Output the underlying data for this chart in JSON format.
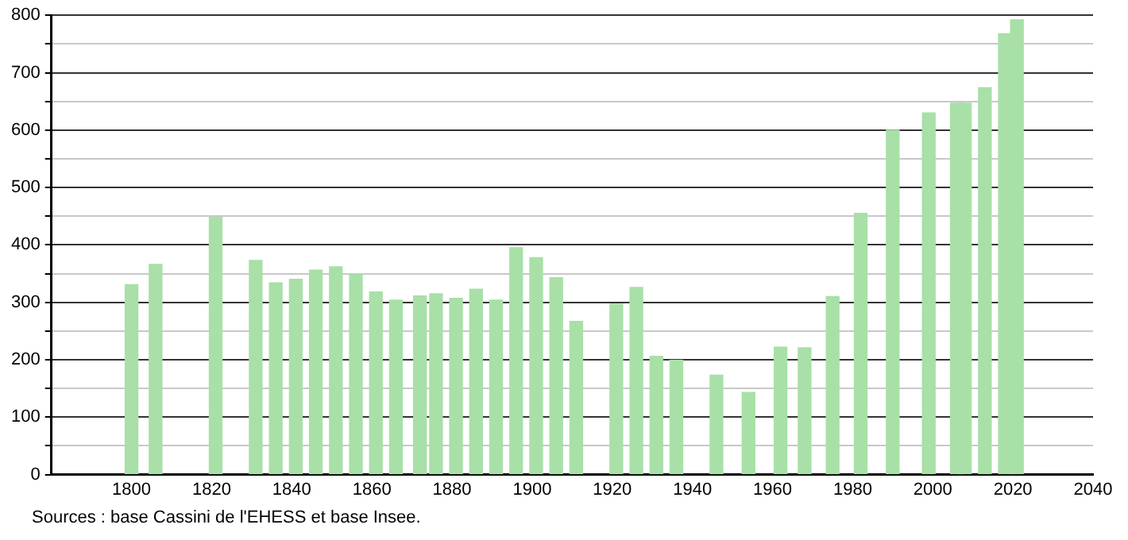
{
  "chart_data": {
    "type": "bar",
    "color": "#a8e0a8",
    "x": [
      1800,
      1806,
      1821,
      1831,
      1836,
      1841,
      1846,
      1851,
      1856,
      1861,
      1866,
      1872,
      1876,
      1881,
      1886,
      1891,
      1896,
      1901,
      1906,
      1911,
      1921,
      1926,
      1931,
      1936,
      1946,
      1954,
      1962,
      1968,
      1975,
      1982,
      1990,
      1999,
      2006,
      2008,
      2013,
      2018,
      2021
    ],
    "values": [
      331,
      366,
      448,
      373,
      334,
      340,
      356,
      362,
      349,
      318,
      304,
      311,
      315,
      307,
      323,
      304,
      395,
      378,
      343,
      267,
      297,
      326,
      206,
      199,
      173,
      143,
      222,
      221,
      310,
      455,
      600,
      630,
      647,
      647,
      674,
      768,
      792
    ],
    "xlim": [
      1780,
      2040
    ],
    "xticks": [
      1800,
      1820,
      1840,
      1860,
      1880,
      1900,
      1920,
      1940,
      1960,
      1980,
      2000,
      2020,
      2040
    ],
    "ylim": [
      0,
      800
    ],
    "yticks": [
      0,
      {
        "value": 50,
        "label": null
      },
      100,
      {
        "value": 150,
        "label": null
      },
      200,
      {
        "value": 250,
        "label": null
      },
      300,
      {
        "value": 350,
        "label": null
      },
      400,
      {
        "value": 450,
        "label": null
      },
      500,
      {
        "value": 550,
        "label": null
      },
      600,
      {
        "value": 650,
        "label": null
      },
      700,
      {
        "value": 750,
        "label": null
      },
      800
    ],
    "grid": "y",
    "annotations": [
      "Sources : base Cassini de l'EHESS et base Insee."
    ]
  }
}
